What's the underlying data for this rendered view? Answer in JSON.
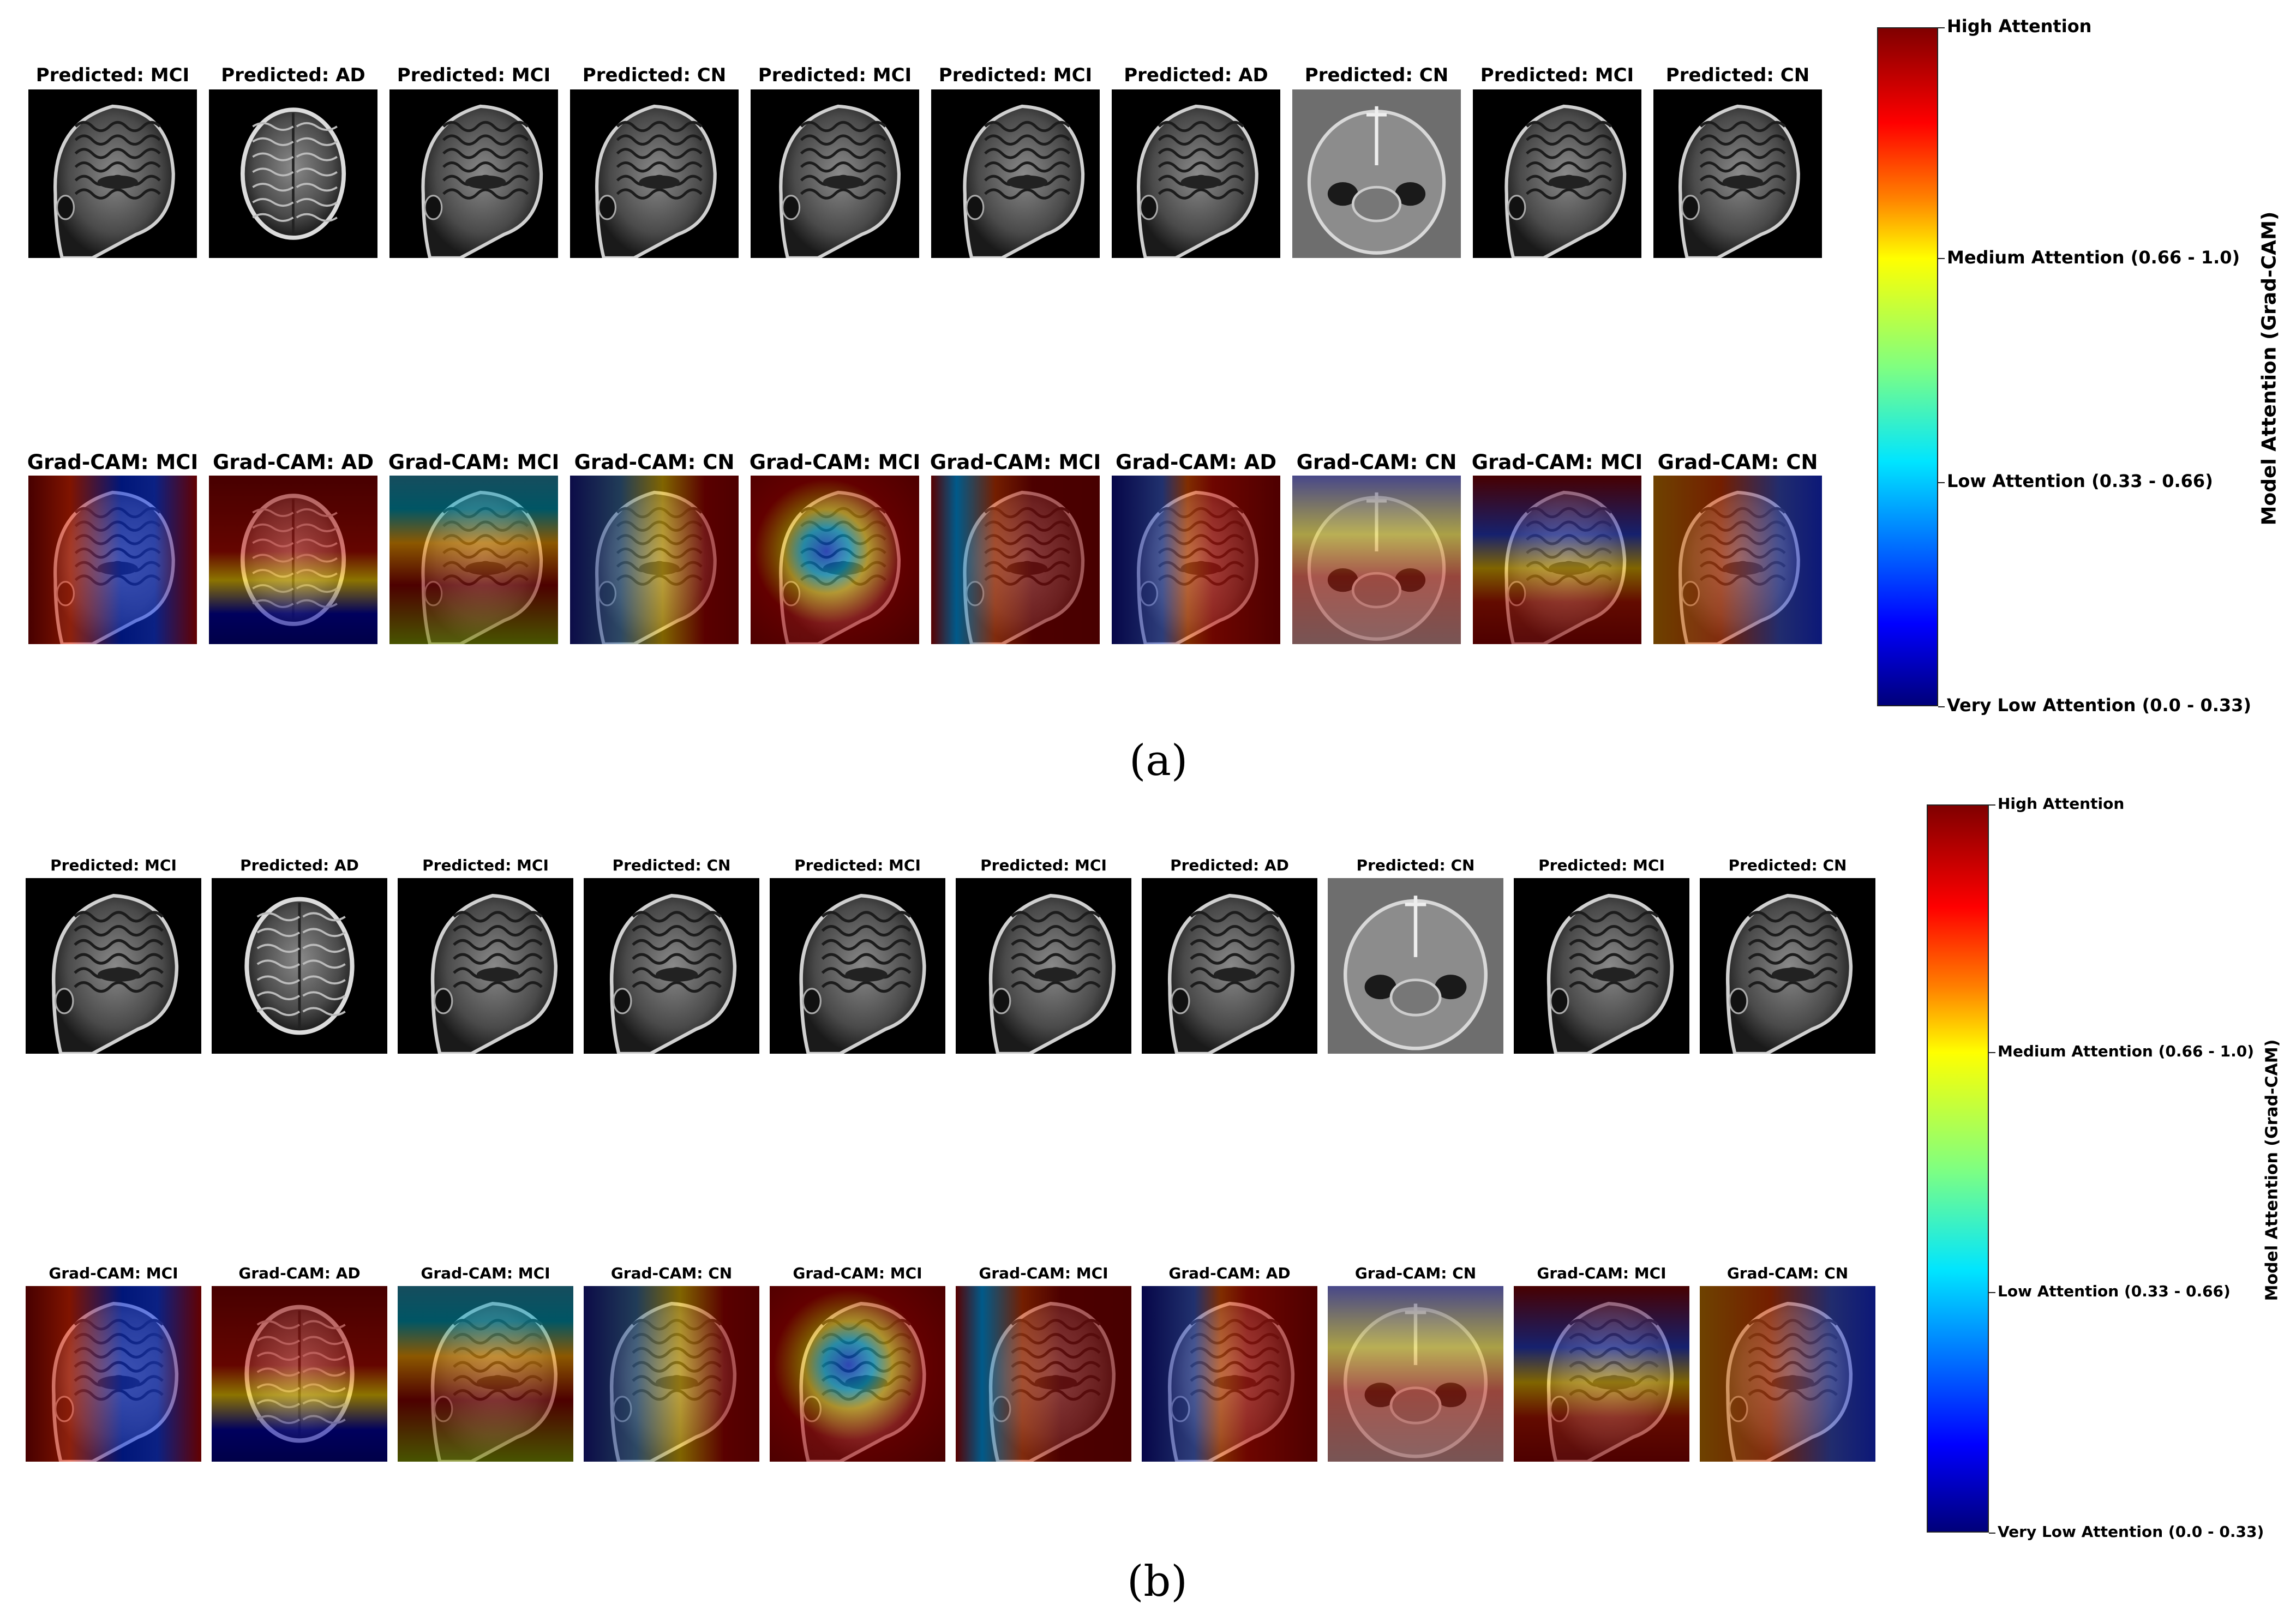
{
  "panel_a": {
    "caption": "(a)",
    "predicted_labels": [
      "Predicted: MCI",
      "Predicted: AD",
      "Predicted: MCI",
      "Predicted: CN",
      "Predicted: MCI",
      "Predicted: MCI",
      "Predicted: AD",
      "Predicted: CN",
      "Predicted: MCI",
      "Predicted: CN"
    ],
    "gradcam_labels": [
      "Grad-CAM: MCI",
      "Grad-CAM: AD",
      "Grad-CAM: MCI",
      "Grad-CAM: CN",
      "Grad-CAM: MCI",
      "Grad-CAM: MCI",
      "Grad-CAM: AD",
      "Grad-CAM: CN",
      "Grad-CAM: MCI",
      "Grad-CAM: CN"
    ],
    "colorbar": {
      "title": "Model Attention (Grad-CAM)",
      "ticks": [
        "High Attention",
        "Medium Attention (0.66 - 1.0)",
        "Low Attention (0.33 - 0.66)",
        "Very Low Attention (0.0 - 0.33)"
      ]
    }
  },
  "panel_b": {
    "caption": "(b)",
    "predicted_labels": [
      "Predicted: MCI",
      "Predicted: AD",
      "Predicted: MCI",
      "Predicted: CN",
      "Predicted: MCI",
      "Predicted: MCI",
      "Predicted: AD",
      "Predicted: CN",
      "Predicted: MCI",
      "Predicted: CN"
    ],
    "gradcam_labels": [
      "Grad-CAM: MCI",
      "Grad-CAM: AD",
      "Grad-CAM: MCI",
      "Grad-CAM: CN",
      "Grad-CAM: MCI",
      "Grad-CAM: MCI",
      "Grad-CAM: AD",
      "Grad-CAM: CN",
      "Grad-CAM: MCI",
      "Grad-CAM: CN"
    ],
    "colorbar": {
      "title": "Model Attention (Grad-CAM)",
      "ticks": [
        "High Attention",
        "Medium Attention (0.66 - 1.0)",
        "Low Attention (0.33 - 0.66)",
        "Very Low Attention (0.0 - 0.33)"
      ]
    }
  },
  "scan_views": [
    "sagittal",
    "axial",
    "sagittal",
    "sagittal",
    "sagittal",
    "sagittal",
    "sagittal",
    "axial",
    "sagittal",
    "sagittal"
  ],
  "colors": {
    "attention_high": "#800000",
    "attention_medium": "#ffff00",
    "attention_low": "#00e5ff",
    "attention_very_low": "#00007a"
  }
}
